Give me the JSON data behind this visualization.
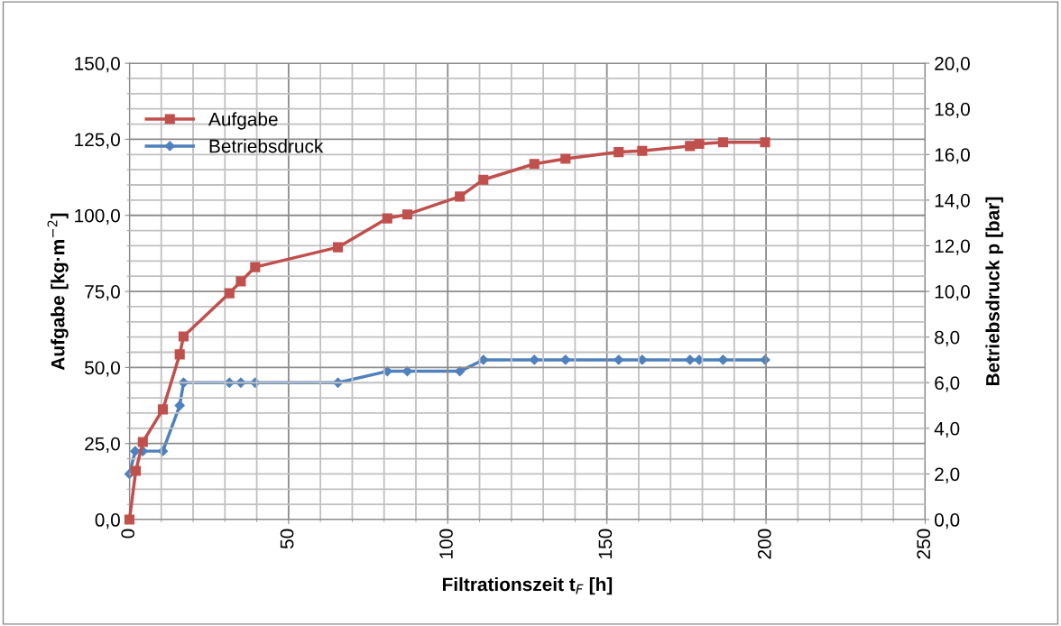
{
  "chart_data": {
    "type": "line",
    "xlabel": "Filtrationszeit t$_{F}$ [h]",
    "ylabel": "Aufgabe [kg·m$^{−2}$]",
    "y2label": "Betriebsdruck p [bar]",
    "xlim": [
      0,
      250
    ],
    "ylim": [
      0,
      150
    ],
    "y2lim": [
      0,
      20
    ],
    "xticks": [
      0,
      {
        "value": 10,
        "label": null
      },
      {
        "value": 20,
        "label": null
      },
      {
        "value": 30,
        "label": null
      },
      {
        "value": 40,
        "label": null
      },
      50,
      {
        "value": 60,
        "label": null
      },
      {
        "value": 70,
        "label": null
      },
      {
        "value": 80,
        "label": null
      },
      {
        "value": 90,
        "label": null
      },
      100,
      {
        "value": 110,
        "label": null
      },
      {
        "value": 120,
        "label": null
      },
      {
        "value": 130,
        "label": null
      },
      {
        "value": 140,
        "label": null
      },
      150,
      {
        "value": 160,
        "label": null
      },
      {
        "value": 170,
        "label": null
      },
      {
        "value": 180,
        "label": null
      },
      {
        "value": 190,
        "label": null
      },
      200,
      {
        "value": 210,
        "label": null
      },
      {
        "value": 220,
        "label": null
      },
      {
        "value": 230,
        "label": null
      },
      {
        "value": 240,
        "label": null
      },
      250
    ],
    "yticks": [
      {
        "value": 0,
        "label": "0,0"
      },
      {
        "value": 5,
        "label": null
      },
      {
        "value": 10,
        "label": null
      },
      {
        "value": 15,
        "label": null
      },
      {
        "value": 20,
        "label": null
      },
      {
        "value": 25,
        "label": "25,0"
      },
      {
        "value": 30,
        "label": null
      },
      {
        "value": 35,
        "label": null
      },
      {
        "value": 40,
        "label": null
      },
      {
        "value": 45,
        "label": null
      },
      {
        "value": 50,
        "label": "50,0"
      },
      {
        "value": 55,
        "label": null
      },
      {
        "value": 60,
        "label": null
      },
      {
        "value": 65,
        "label": null
      },
      {
        "value": 70,
        "label": null
      },
      {
        "value": 75,
        "label": "75,0"
      },
      {
        "value": 80,
        "label": null
      },
      {
        "value": 85,
        "label": null
      },
      {
        "value": 90,
        "label": null
      },
      {
        "value": 95,
        "label": null
      },
      {
        "value": 100,
        "label": "100,0"
      },
      {
        "value": 105,
        "label": null
      },
      {
        "value": 110,
        "label": null
      },
      {
        "value": 115,
        "label": null
      },
      {
        "value": 120,
        "label": null
      },
      {
        "value": 125,
        "label": "125,0"
      },
      {
        "value": 130,
        "label": null
      },
      {
        "value": 135,
        "label": null
      },
      {
        "value": 140,
        "label": null
      },
      {
        "value": 145,
        "label": null
      },
      {
        "value": 150,
        "label": "150,0"
      }
    ],
    "y2ticks": [
      {
        "value": 0,
        "label": "0,0"
      },
      {
        "value": 2,
        "label": "2,0"
      },
      {
        "value": 4,
        "label": "4,0"
      },
      {
        "value": 6,
        "label": "6,0"
      },
      {
        "value": 8,
        "label": "8,0"
      },
      {
        "value": 10,
        "label": "10,0"
      },
      {
        "value": 12,
        "label": "12,0"
      },
      {
        "value": 14,
        "label": "14,0"
      },
      {
        "value": 16,
        "label": "16,0"
      },
      {
        "value": 18,
        "label": "18,0"
      },
      {
        "value": 20,
        "label": "20,0"
      }
    ],
    "grid": true,
    "legend": "top left",
    "line_style": "solid",
    "series": [
      {
        "name": "Aufgabe",
        "color": "#c0504d",
        "marker": "square",
        "x": [
          0,
          2,
          4.2,
          10.5,
          15.8,
          17,
          31.4,
          35,
          39.5,
          65.5,
          81,
          87.3,
          103.8,
          111.2,
          127.2,
          137,
          153.7,
          161.1,
          176.1,
          179,
          186.5,
          199.7
        ],
        "values": [
          0,
          16,
          25.5,
          36.2,
          54.3,
          60.2,
          74.4,
          78.3,
          83,
          89.5,
          99,
          100.3,
          106.2,
          111.7,
          116.9,
          118.6,
          120.8,
          121.2,
          122.8,
          123.5,
          124,
          124
        ]
      },
      {
        "name": "Betriebsdruck",
        "color": "#4f81bd",
        "marker": "diamond",
        "axis": "y2",
        "x": [
          0,
          1.8,
          4.2,
          10.5,
          15.8,
          17,
          31.4,
          35,
          39.5,
          65.5,
          81,
          87.3,
          103.8,
          111.2,
          127.2,
          137,
          153.7,
          161.1,
          176.1,
          179,
          186.5,
          199.7
        ],
        "values": [
          2,
          3,
          3,
          3,
          5,
          6,
          6,
          6,
          6,
          6,
          6.5,
          6.5,
          6.5,
          7,
          7,
          7,
          7,
          7,
          7,
          7,
          7,
          7
        ]
      }
    ]
  }
}
